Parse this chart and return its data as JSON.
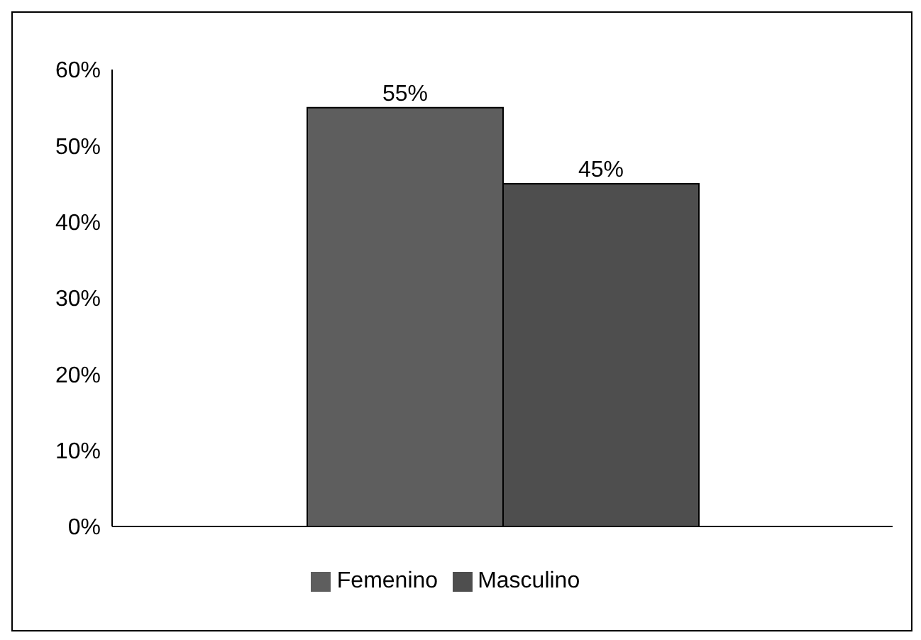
{
  "chart_data": {
    "type": "bar",
    "categories": [
      null
    ],
    "series": [
      {
        "name": "Femenino",
        "color": "#5e5e5e",
        "values": [
          55
        ],
        "value_labels": [
          "55%"
        ]
      },
      {
        "name": "Masculino",
        "color": "#4e4e4e",
        "values": [
          45
        ],
        "value_labels": [
          "45%"
        ]
      }
    ],
    "ylim": [
      0,
      60
    ],
    "yticks": [
      {
        "value": 0,
        "label": "0%"
      },
      {
        "value": 10,
        "label": "10%"
      },
      {
        "value": 20,
        "label": "20%"
      },
      {
        "value": 30,
        "label": "30%"
      },
      {
        "value": 40,
        "label": "40%"
      },
      {
        "value": 50,
        "label": "50%"
      },
      {
        "value": 60,
        "label": "60%"
      }
    ],
    "grid": false,
    "legend": "bottom"
  }
}
